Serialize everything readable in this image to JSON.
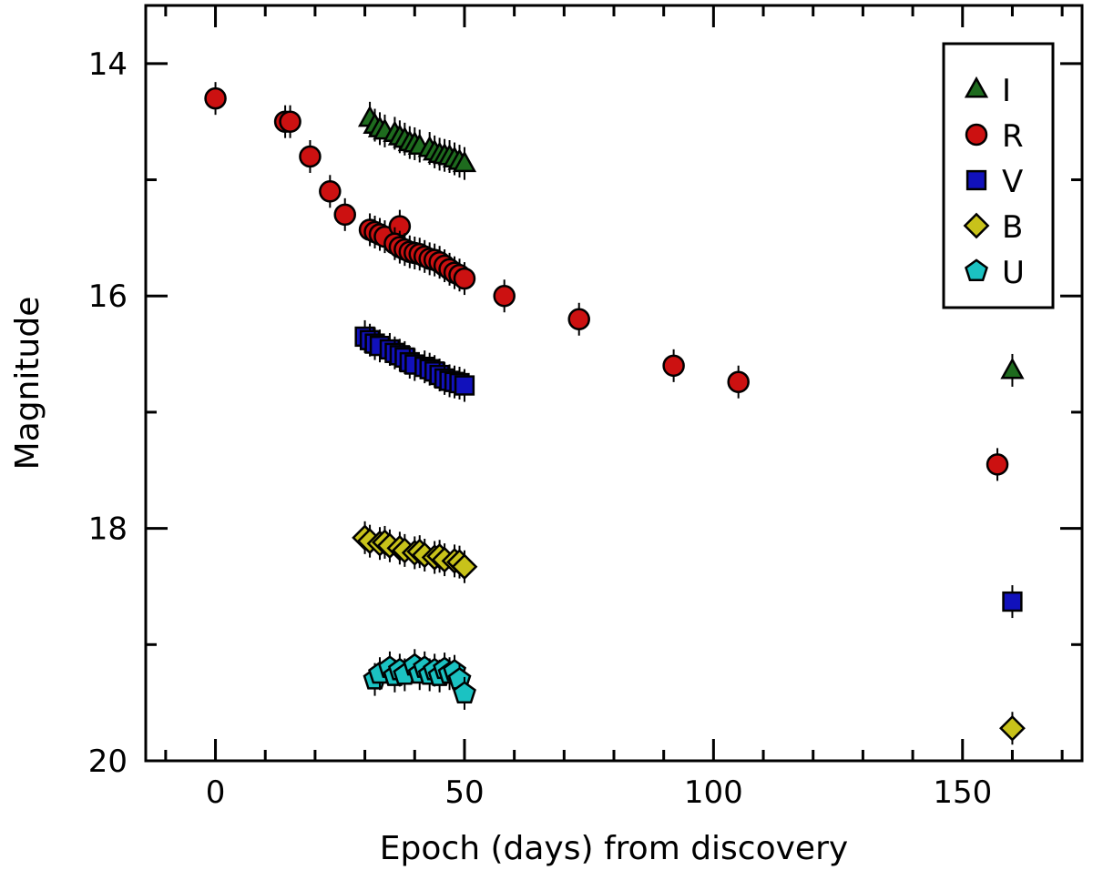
{
  "chart_data": {
    "type": "scatter",
    "xlabel": "Epoch (days) from discovery",
    "ylabel": "Magnitude",
    "xlim": [
      -14,
      174
    ],
    "ylim": [
      20,
      13.5
    ],
    "y_inverted": true,
    "xticks": [
      0,
      50,
      100,
      150
    ],
    "yticks": [
      14,
      16,
      18,
      20
    ],
    "grid": false,
    "legend_position": "top-right",
    "series": [
      {
        "name": "I",
        "marker": "triangle",
        "color": "#1e6b1e",
        "points": [
          [
            31,
            14.47
          ],
          [
            32,
            14.53
          ],
          [
            33,
            14.56
          ],
          [
            34,
            14.58
          ],
          [
            36,
            14.6
          ],
          [
            37,
            14.63
          ],
          [
            38,
            14.65
          ],
          [
            39,
            14.68
          ],
          [
            40,
            14.69
          ],
          [
            41,
            14.71
          ],
          [
            43,
            14.73
          ],
          [
            44,
            14.76
          ],
          [
            45,
            14.78
          ],
          [
            46,
            14.79
          ],
          [
            47,
            14.8
          ],
          [
            48,
            14.82
          ],
          [
            49,
            14.84
          ],
          [
            50,
            14.86
          ],
          [
            160,
            16.64
          ]
        ]
      },
      {
        "name": "R",
        "marker": "circle",
        "color": "#cc1111",
        "points": [
          [
            0,
            14.3
          ],
          [
            14,
            14.5
          ],
          [
            15,
            14.5
          ],
          [
            19,
            14.8
          ],
          [
            23,
            15.1
          ],
          [
            26,
            15.3
          ],
          [
            31,
            15.43
          ],
          [
            32,
            15.45
          ],
          [
            33,
            15.47
          ],
          [
            34,
            15.49
          ],
          [
            37,
            15.4
          ],
          [
            36,
            15.55
          ],
          [
            37,
            15.58
          ],
          [
            38,
            15.6
          ],
          [
            39,
            15.62
          ],
          [
            40,
            15.63
          ],
          [
            41,
            15.64
          ],
          [
            42,
            15.66
          ],
          [
            43,
            15.68
          ],
          [
            44,
            15.69
          ],
          [
            45,
            15.71
          ],
          [
            46,
            15.74
          ],
          [
            47,
            15.77
          ],
          [
            48,
            15.8
          ],
          [
            49,
            15.82
          ],
          [
            50,
            15.85
          ],
          [
            58,
            16.0
          ],
          [
            73,
            16.2
          ],
          [
            92,
            16.6
          ],
          [
            105,
            16.74
          ],
          [
            157,
            17.45
          ]
        ]
      },
      {
        "name": "V",
        "marker": "square",
        "color": "#1111bb",
        "points": [
          [
            30,
            16.35
          ],
          [
            31,
            16.38
          ],
          [
            32,
            16.41
          ],
          [
            33,
            16.43
          ],
          [
            35,
            16.46
          ],
          [
            36,
            16.49
          ],
          [
            37,
            16.51
          ],
          [
            38,
            16.53
          ],
          [
            39,
            16.57
          ],
          [
            40,
            16.59
          ],
          [
            42,
            16.61
          ],
          [
            43,
            16.63
          ],
          [
            44,
            16.65
          ],
          [
            45,
            16.68
          ],
          [
            46,
            16.71
          ],
          [
            47,
            16.73
          ],
          [
            48,
            16.74
          ],
          [
            49,
            16.75
          ],
          [
            50,
            16.77
          ],
          [
            160,
            18.63
          ]
        ]
      },
      {
        "name": "B",
        "marker": "diamond",
        "color": "#c8c21a",
        "points": [
          [
            30,
            18.08
          ],
          [
            31,
            18.11
          ],
          [
            33,
            18.13
          ],
          [
            34,
            18.12
          ],
          [
            35,
            18.15
          ],
          [
            37,
            18.17
          ],
          [
            38,
            18.19
          ],
          [
            40,
            18.21
          ],
          [
            41,
            18.2
          ],
          [
            42,
            18.23
          ],
          [
            44,
            18.25
          ],
          [
            45,
            18.24
          ],
          [
            46,
            18.27
          ],
          [
            48,
            18.28
          ],
          [
            49,
            18.29
          ],
          [
            50,
            18.33
          ],
          [
            160,
            19.72
          ]
        ]
      },
      {
        "name": "U",
        "marker": "pentagon",
        "color": "#1bc2c2",
        "points": [
          [
            32,
            19.3
          ],
          [
            33,
            19.25
          ],
          [
            35,
            19.2
          ],
          [
            36,
            19.27
          ],
          [
            37,
            19.22
          ],
          [
            38,
            19.26
          ],
          [
            40,
            19.18
          ],
          [
            41,
            19.25
          ],
          [
            42,
            19.2
          ],
          [
            43,
            19.26
          ],
          [
            44,
            19.22
          ],
          [
            45,
            19.27
          ],
          [
            46,
            19.21
          ],
          [
            47,
            19.25
          ],
          [
            48,
            19.23
          ],
          [
            49,
            19.3
          ],
          [
            50,
            19.42
          ]
        ]
      }
    ]
  }
}
